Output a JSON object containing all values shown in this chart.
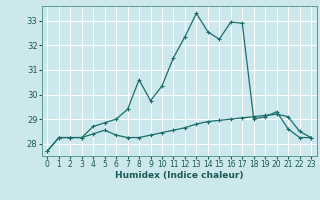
{
  "xlabel": "Humidex (Indice chaleur)",
  "background_color": "#cde8ec",
  "grid_color": "#b0d8dc",
  "line_color": "#1a6e6a",
  "xlim": [
    -0.5,
    23.5
  ],
  "ylim": [
    27.5,
    33.6
  ],
  "yticks": [
    28,
    29,
    30,
    31,
    32,
    33
  ],
  "xticks": [
    0,
    1,
    2,
    3,
    4,
    5,
    6,
    7,
    8,
    9,
    10,
    11,
    12,
    13,
    14,
    15,
    16,
    17,
    18,
    19,
    20,
    21,
    22,
    23
  ],
  "line1_x": [
    0,
    1,
    2,
    3,
    4,
    5,
    6,
    7,
    8,
    9,
    10,
    11,
    12,
    13,
    14,
    15,
    16,
    17,
    18,
    19,
    20,
    21,
    22,
    23
  ],
  "line1_y": [
    27.7,
    28.25,
    28.25,
    28.25,
    28.4,
    28.55,
    28.35,
    28.25,
    28.25,
    28.35,
    28.45,
    28.55,
    28.65,
    28.8,
    28.9,
    28.95,
    29.0,
    29.05,
    29.1,
    29.15,
    29.2,
    29.1,
    28.5,
    28.25
  ],
  "line2_x": [
    0,
    1,
    2,
    3,
    4,
    5,
    6,
    7,
    8,
    9,
    10,
    11,
    12,
    13,
    14,
    15,
    16,
    17,
    18,
    19,
    20,
    21,
    22,
    23
  ],
  "line2_y": [
    27.7,
    28.25,
    28.25,
    28.25,
    28.7,
    28.85,
    29.0,
    29.4,
    30.6,
    29.75,
    30.35,
    31.5,
    32.35,
    33.3,
    32.55,
    32.25,
    32.95,
    32.9,
    29.0,
    29.1,
    29.3,
    28.6,
    28.25,
    28.25
  ]
}
